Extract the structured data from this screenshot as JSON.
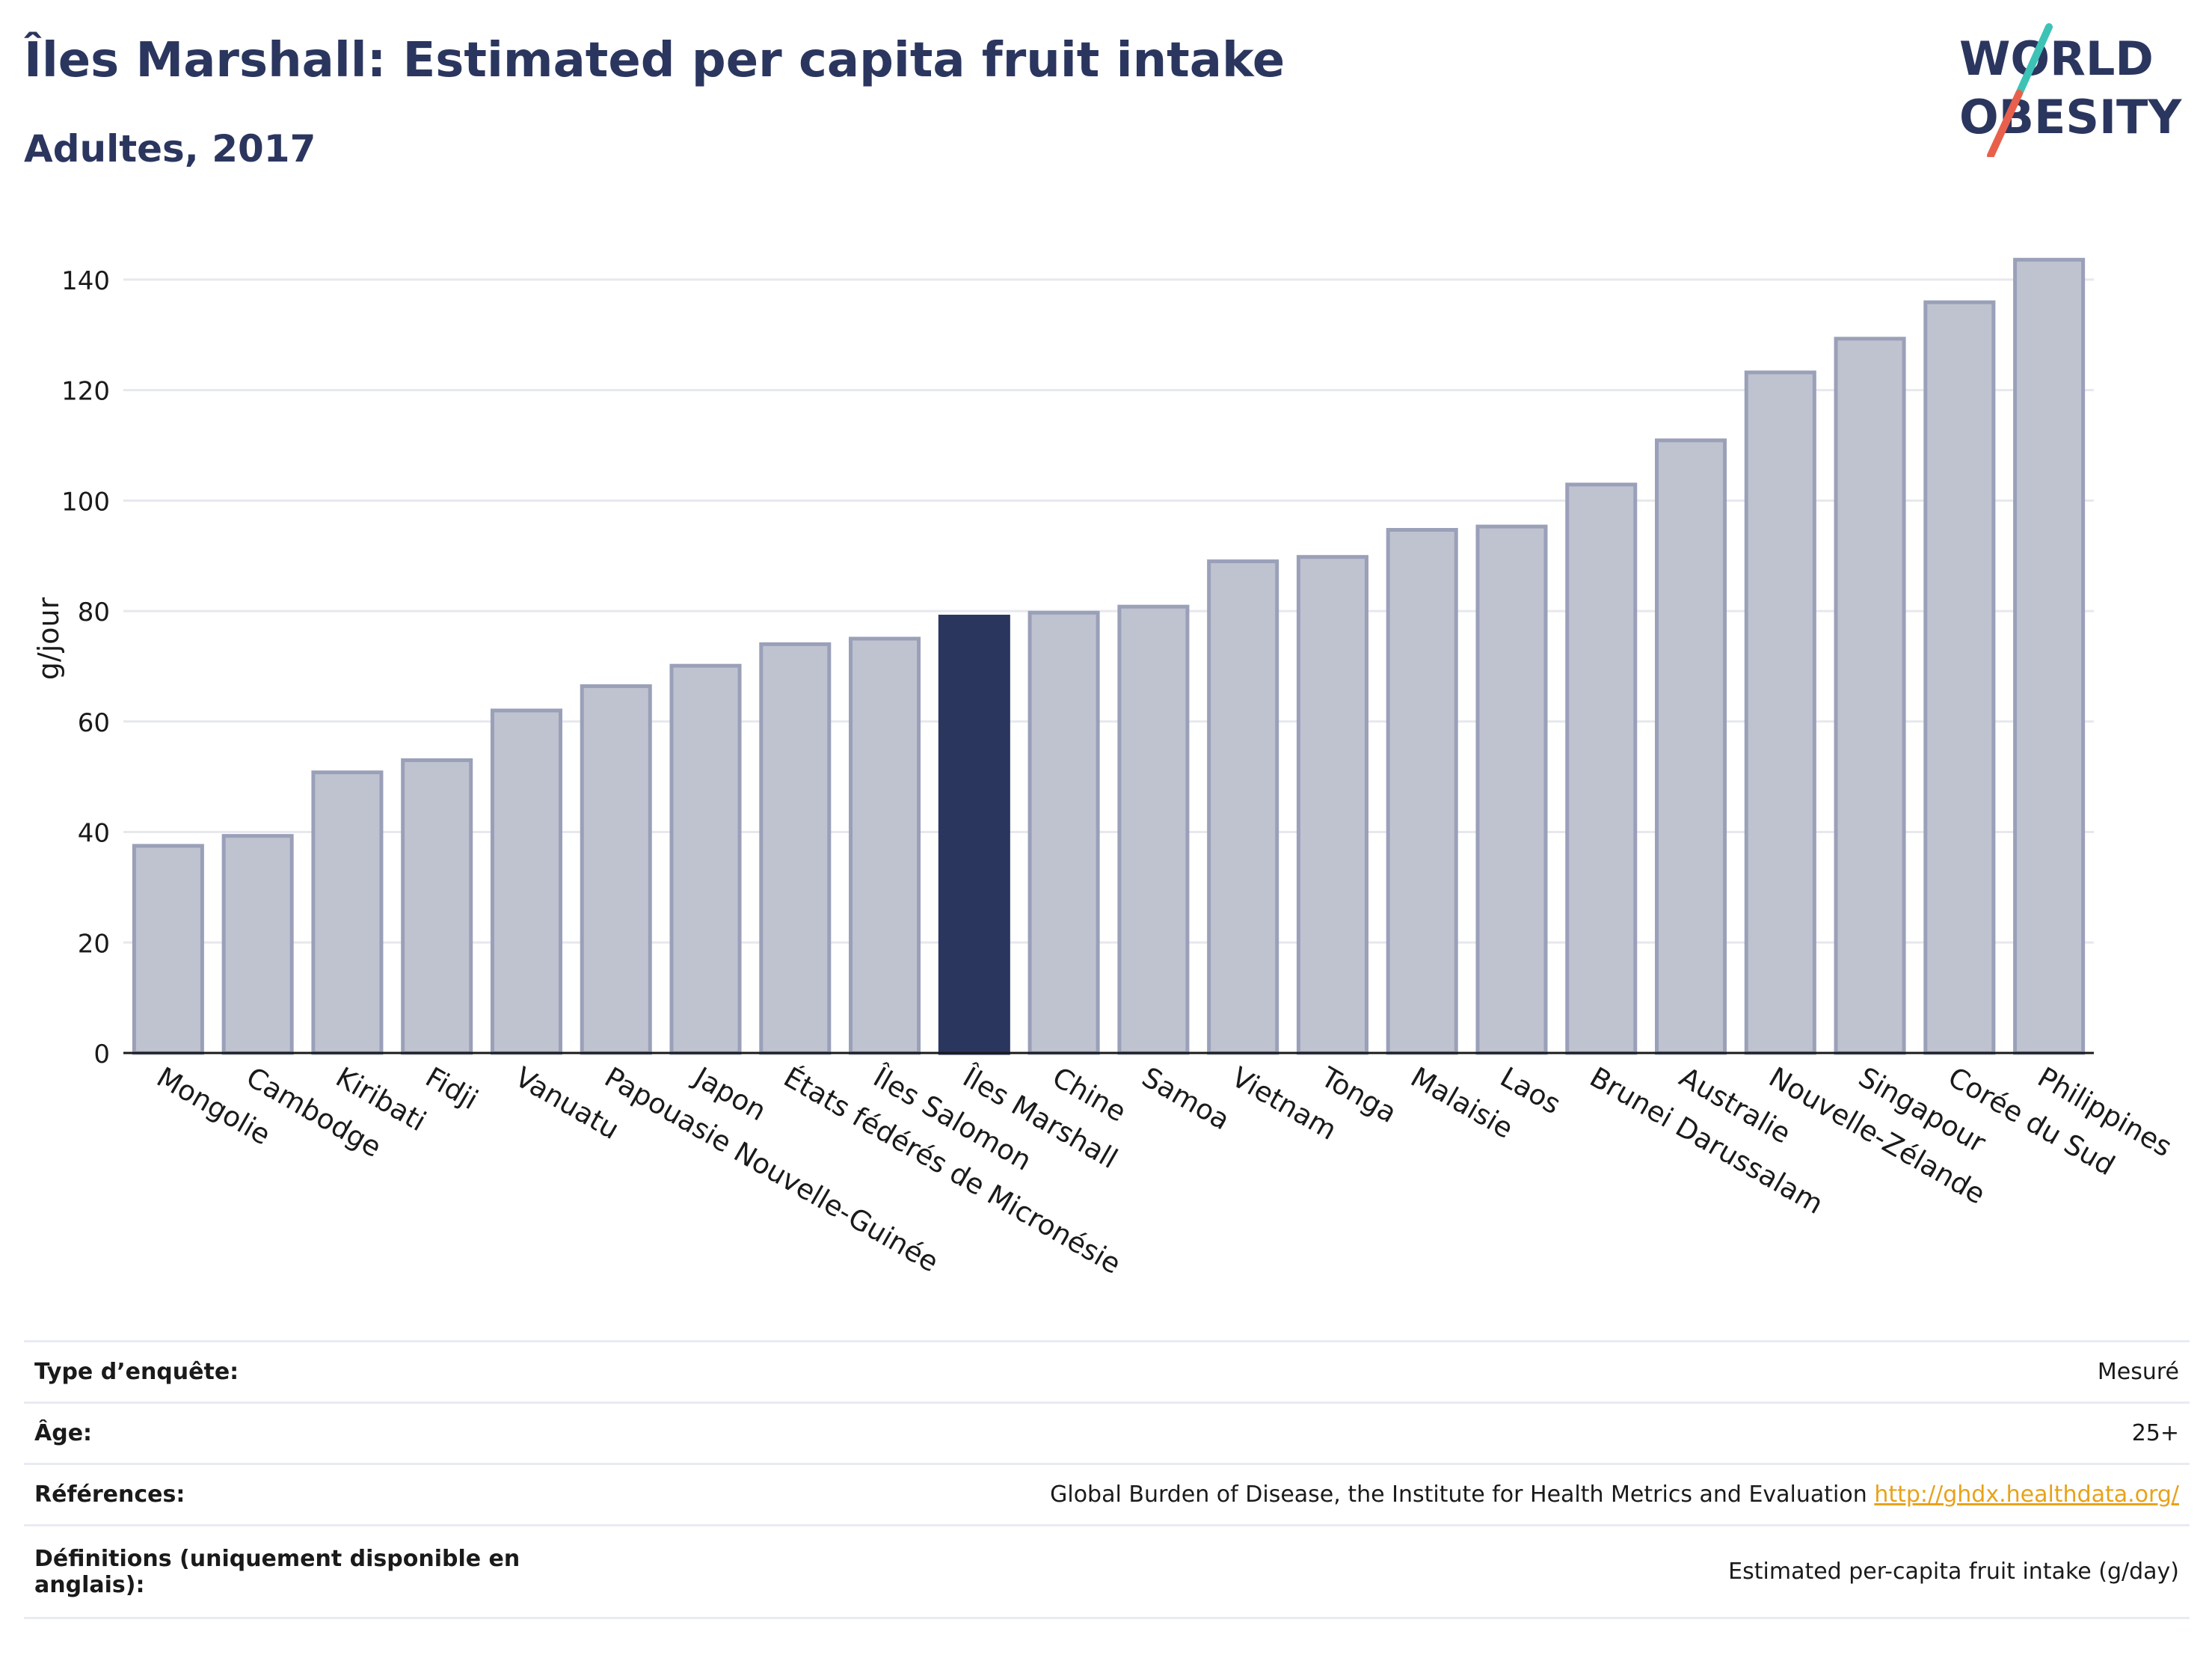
{
  "header": {
    "title": "Îles Marshall: Estimated per capita fruit intake",
    "subtitle": "Adultes, 2017"
  },
  "logo": {
    "line1": "WORLD",
    "line2": "OBESITY",
    "colors": {
      "text": "#2b365f",
      "slash_teal": "#3cc3b6",
      "slash_red": "#e8604c"
    }
  },
  "colors": {
    "bar_default": "#bfc3d0",
    "bar_default_stroke": "#9aa0b8",
    "bar_highlight": "#2b365f",
    "grid": "#e6e8ee",
    "axis_text": "#1a1a1a"
  },
  "chart_data": {
    "type": "bar",
    "ylabel": "g/jour",
    "ylim": [
      0,
      150
    ],
    "yticks": [
      0,
      20,
      40,
      60,
      80,
      100,
      120,
      140
    ],
    "grid": true,
    "highlight": "Îles Marshall",
    "categories": [
      "Mongolie",
      "Cambodge",
      "Kiribati",
      "Fidji",
      "Vanuatu",
      "Papouasie Nouvelle-Guinée",
      "Japon",
      "États fédérés de Micronésie",
      "Îles Salomon",
      "Îles Marshall",
      "Chine",
      "Samoa",
      "Vietnam",
      "Tonga",
      "Malaisie",
      "Laos",
      "Brunei Darussalam",
      "Australie",
      "Nouvelle-Zélande",
      "Singapour",
      "Corée du Sud",
      "Philippines"
    ],
    "values": [
      37.5,
      39.3,
      50.8,
      53.0,
      62.0,
      66.4,
      70.1,
      74.0,
      75.0,
      79.0,
      79.7,
      80.8,
      89.0,
      89.8,
      94.7,
      95.3,
      102.9,
      110.9,
      123.2,
      129.3,
      135.9,
      143.6
    ]
  },
  "meta": {
    "rows": [
      {
        "label": "Type d’enquête:",
        "value": "Mesuré"
      },
      {
        "label": "Âge:",
        "value": "25+"
      },
      {
        "label": "Références:",
        "value": "Global Burden of Disease, the Institute for Health Metrics and Evaluation",
        "link": "http://ghdx.healthdata.org/"
      },
      {
        "label": "Définitions (uniquement disponible en anglais):",
        "value": "Estimated per-capita fruit intake (g/day)"
      }
    ]
  }
}
